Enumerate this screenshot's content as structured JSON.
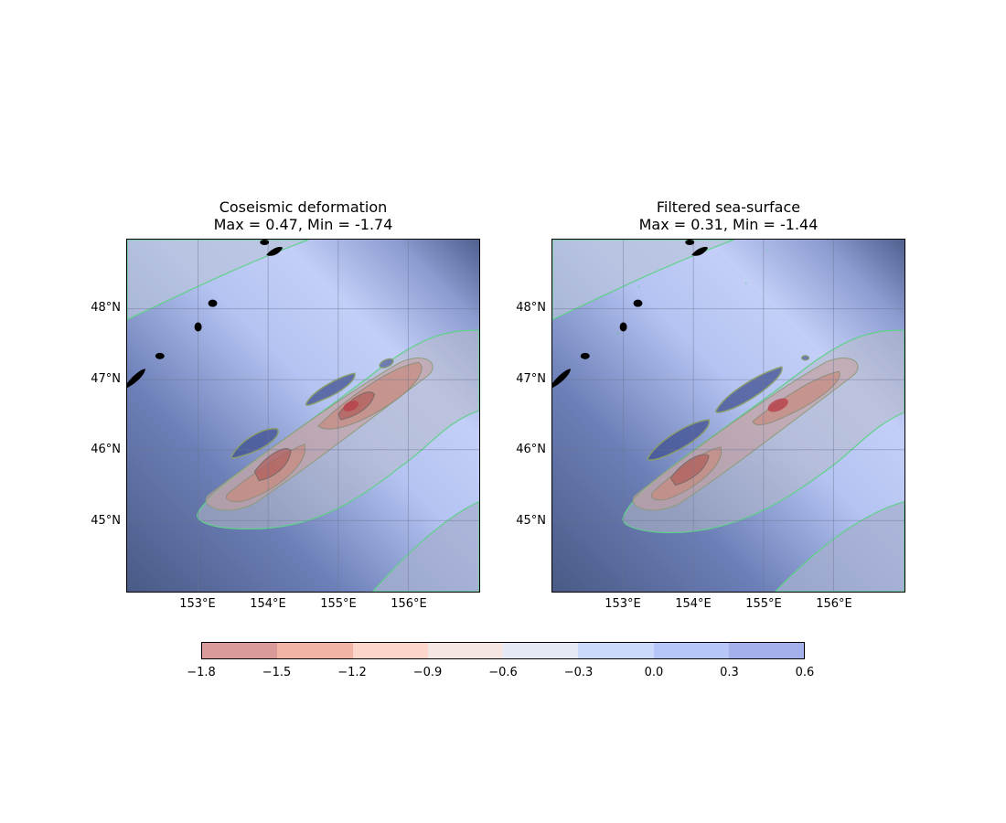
{
  "panels": [
    {
      "title_line1": "Coseismic deformation",
      "title_line2": "Max = 0.47, Min = -1.74"
    },
    {
      "title_line1": "Filtered sea-surface",
      "title_line2": "Max = 0.31, Min = -1.44"
    }
  ],
  "lat_ticks": [
    "48°N",
    "47°N",
    "46°N",
    "45°N"
  ],
  "lon_ticks": [
    "153°E",
    "154°E",
    "155°E",
    "156°E"
  ],
  "colorbar": {
    "ticks": [
      "−1.8",
      "−1.5",
      "−1.2",
      "−0.9",
      "−0.6",
      "−0.3",
      "0.0",
      "0.3",
      "0.6"
    ],
    "bin_colors": [
      "#d99a9a",
      "#f2b4a4",
      "#fcd7c9",
      "#f5e6e3",
      "#e5e9f5",
      "#cdd9fb",
      "#b7c6f8",
      "#a3b0ea"
    ]
  },
  "colors": {
    "contour": "#5fd18a",
    "land": "#000000"
  }
}
